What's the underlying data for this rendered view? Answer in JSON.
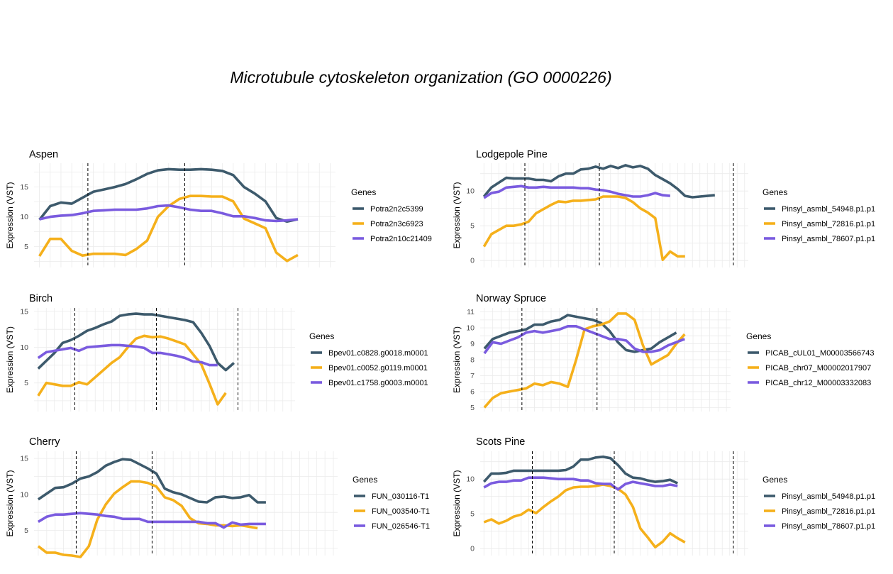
{
  "title": "Microtubule cytoskeleton organization (GO 0000226)",
  "colors": {
    "dark": "#3d5a6c",
    "orange": "#f5b01b",
    "purple": "#7a5bdf",
    "grid": "#ebebeb"
  },
  "chart_data": [
    {
      "type": "line",
      "title": "Aspen",
      "ylabel": "Expression (VST)",
      "legend_title": "Genes",
      "legend_position": "right",
      "ylim": [
        1.5,
        19
      ],
      "yticks": [
        5,
        10,
        15
      ],
      "x": [
        1,
        2,
        3,
        4,
        5,
        6,
        7,
        8,
        9,
        10,
        11,
        12,
        13,
        14,
        15,
        16,
        17,
        18,
        19,
        20,
        21,
        22,
        23,
        24,
        25,
        26,
        27,
        28
      ],
      "vlines": [
        5.5,
        14.5
      ],
      "series": [
        {
          "name": "Potra2n2c5399",
          "color": "#3d5a6c",
          "values": [
            9.5,
            11.8,
            12.4,
            12.2,
            13.2,
            14.2,
            14.6,
            15.0,
            15.5,
            16.3,
            17.2,
            17.8,
            18.0,
            17.9,
            17.9,
            18.0,
            17.9,
            17.7,
            17.0,
            15.0,
            13.9,
            12.6,
            9.8,
            9.2,
            9.6,
            null,
            null,
            null
          ]
        },
        {
          "name": "Potra2n3c6923",
          "color": "#f5b01b",
          "values": [
            3.4,
            6.3,
            6.3,
            4.3,
            3.5,
            3.8,
            3.8,
            3.8,
            3.6,
            4.6,
            6.0,
            10.0,
            11.8,
            13.0,
            13.5,
            13.5,
            13.4,
            13.4,
            12.6,
            9.7,
            8.9,
            8.1,
            4.0,
            2.6,
            3.6,
            null,
            null,
            null
          ]
        },
        {
          "name": "Potra2n10c21409",
          "color": "#7a5bdf",
          "values": [
            9.6,
            10.0,
            10.2,
            10.3,
            10.6,
            11.0,
            11.1,
            11.2,
            11.2,
            11.2,
            11.4,
            11.8,
            11.9,
            11.6,
            11.2,
            11.0,
            11.0,
            10.6,
            10.1,
            10.1,
            9.8,
            9.4,
            9.3,
            9.4,
            9.6,
            null,
            null,
            null
          ]
        }
      ]
    },
    {
      "type": "line",
      "title": "Lodgepole Pine",
      "ylabel": "Expression (VST)",
      "legend_title": "Genes",
      "legend_position": "right",
      "ylim": [
        -1,
        14
      ],
      "yticks": [
        0,
        5,
        10
      ],
      "x": [
        1,
        2,
        3,
        4,
        5,
        6,
        7,
        8,
        9,
        10,
        11,
        12,
        13,
        14,
        15,
        16,
        17,
        18,
        19,
        20,
        21,
        22,
        23,
        24,
        25,
        26,
        27,
        28,
        29,
        30,
        31,
        32,
        33,
        34,
        35,
        36
      ],
      "vlines": [
        6.5,
        16.5,
        34.5
      ],
      "series": [
        {
          "name": "Pinsyl_asmbl_54948.p1.p1",
          "color": "#3d5a6c",
          "values": [
            9.2,
            10.5,
            11.2,
            11.9,
            11.8,
            11.8,
            11.8,
            11.6,
            11.6,
            11.4,
            12.1,
            12.5,
            12.5,
            13.1,
            13.2,
            13.5,
            13.2,
            13.6,
            13.3,
            13.7,
            13.4,
            13.6,
            13.2,
            12.3,
            11.7,
            11.1,
            10.3,
            9.3,
            9.1,
            9.2,
            9.3,
            9.4,
            null,
            null,
            null,
            null
          ]
        },
        {
          "name": "Pinsyl_asmbl_72816.p1.p1",
          "color": "#f5b01b",
          "values": [
            2.0,
            3.8,
            4.4,
            5.0,
            5.0,
            5.2,
            5.6,
            6.8,
            7.4,
            8.0,
            8.5,
            8.4,
            8.6,
            8.6,
            8.7,
            8.8,
            9.2,
            9.2,
            9.2,
            9.0,
            8.4,
            7.5,
            6.9,
            6.1,
            0.1,
            1.3,
            0.6,
            0.6,
            null,
            null,
            null,
            null,
            null,
            null,
            null,
            null
          ]
        },
        {
          "name": "Pinsyl_asmbl_78607.p1.p1",
          "color": "#7a5bdf",
          "values": [
            9.0,
            9.7,
            9.9,
            10.5,
            10.6,
            10.7,
            10.5,
            10.5,
            10.6,
            10.5,
            10.5,
            10.5,
            10.5,
            10.4,
            10.4,
            10.2,
            10.1,
            9.9,
            9.6,
            9.4,
            9.2,
            9.2,
            9.4,
            9.7,
            9.4,
            9.3,
            null,
            null,
            null,
            null,
            null,
            null,
            null,
            null,
            null,
            null
          ]
        }
      ]
    },
    {
      "type": "line",
      "title": "Birch",
      "ylabel": "Expression (VST)",
      "legend_title": "Genes",
      "legend_position": "right",
      "ylim": [
        1,
        15.5
      ],
      "yticks": [
        5,
        10,
        15
      ],
      "x": [
        1,
        2,
        3,
        4,
        5,
        6,
        7,
        8,
        9,
        10,
        11,
        12,
        13,
        14,
        15,
        16,
        17,
        18,
        19,
        20,
        21,
        22,
        23,
        24,
        25,
        26,
        27,
        28,
        29,
        30,
        31,
        32
      ],
      "vlines": [
        5.5,
        15.5,
        25.5
      ],
      "series": [
        {
          "name": "Bpev01.c0828.g0018.m0001",
          "color": "#3d5a6c",
          "values": [
            7.0,
            8.1,
            9.2,
            10.6,
            11.0,
            11.6,
            12.3,
            12.7,
            13.2,
            13.6,
            14.4,
            14.6,
            14.7,
            14.6,
            14.6,
            14.4,
            14.2,
            14.0,
            13.8,
            13.5,
            12.0,
            10.2,
            7.8,
            6.8,
            7.8,
            null,
            null,
            null,
            null,
            null,
            null,
            null
          ]
        },
        {
          "name": "Bpev01.c0052.g0119.m0001",
          "color": "#f5b01b",
          "values": [
            3.2,
            5.0,
            4.8,
            4.6,
            4.6,
            5.1,
            4.8,
            5.8,
            6.8,
            7.8,
            8.6,
            10.0,
            11.2,
            11.6,
            11.4,
            11.5,
            11.2,
            10.8,
            10.4,
            9.0,
            7.6,
            4.9,
            2.0,
            3.6,
            null,
            null,
            null,
            null,
            null,
            null,
            null,
            null
          ]
        },
        {
          "name": "Bpev01.c1758.g0003.m0001",
          "color": "#7a5bdf",
          "values": [
            8.5,
            9.3,
            9.5,
            9.7,
            9.9,
            9.5,
            10.0,
            10.1,
            10.2,
            10.3,
            10.3,
            10.2,
            10.1,
            9.9,
            9.2,
            9.2,
            9.0,
            8.8,
            8.5,
            8.0,
            7.9,
            7.5,
            7.5,
            null,
            null,
            null,
            null,
            null,
            null,
            null,
            null,
            null
          ]
        }
      ]
    },
    {
      "type": "line",
      "title": "Norway Spruce",
      "ylabel": "Expression (VST)",
      "legend_title": "Genes",
      "legend_position": "right",
      "ylim": [
        4.75,
        11.25
      ],
      "yticks": [
        5,
        6,
        7,
        8,
        9,
        10,
        11
      ],
      "x": [
        1,
        2,
        3,
        4,
        5,
        6,
        7,
        8,
        9,
        10,
        11,
        12,
        13,
        14,
        15,
        16,
        17,
        18,
        19,
        20,
        21,
        22,
        23,
        24,
        25,
        26,
        27,
        28,
        29,
        30
      ],
      "vlines": [
        5.5,
        14.5
      ],
      "series": [
        {
          "name": "PICAB_cUL01_M00003566743",
          "color": "#3d5a6c",
          "values": [
            8.7,
            9.3,
            9.5,
            9.7,
            9.8,
            9.9,
            10.2,
            10.2,
            10.4,
            10.5,
            10.8,
            10.7,
            10.6,
            10.5,
            10.3,
            9.8,
            9.1,
            8.6,
            8.5,
            8.6,
            8.7,
            9.1,
            9.4,
            9.7,
            null,
            null,
            null,
            null,
            null,
            null
          ]
        },
        {
          "name": "PICAB_chr07_M00002017907",
          "color": "#f5b01b",
          "values": [
            5.0,
            5.6,
            5.9,
            6.0,
            6.1,
            6.2,
            6.5,
            6.4,
            6.6,
            6.5,
            6.3,
            8.0,
            9.9,
            10.1,
            10.2,
            10.4,
            10.9,
            10.9,
            10.5,
            8.9,
            7.7,
            8.0,
            8.3,
            9.0,
            9.6,
            null,
            null,
            null,
            null,
            null
          ]
        },
        {
          "name": "PICAB_chr12_M00003332083",
          "color": "#7a5bdf",
          "values": [
            8.4,
            9.1,
            9.0,
            9.2,
            9.4,
            9.7,
            9.8,
            9.7,
            9.8,
            9.9,
            10.1,
            10.1,
            9.9,
            9.7,
            9.5,
            9.3,
            9.3,
            9.2,
            8.7,
            8.5,
            8.5,
            8.6,
            8.9,
            9.1,
            9.3,
            null,
            null,
            null,
            null,
            null
          ]
        }
      ]
    },
    {
      "type": "line",
      "title": "Cherry",
      "ylabel": "Expression (VST)",
      "legend_title": "Genes",
      "legend_position": "right",
      "ylim": [
        1.5,
        16
      ],
      "yticks": [
        5,
        10,
        15
      ],
      "x": [
        1,
        2,
        3,
        4,
        5,
        6,
        7,
        8,
        9,
        10,
        11,
        12,
        13,
        14,
        15,
        16,
        17,
        18,
        19,
        20,
        21,
        22,
        23,
        24,
        25,
        26,
        27,
        28,
        29,
        30,
        31,
        32,
        33,
        34,
        35,
        36
      ],
      "vlines": [
        5.5,
        14.5
      ],
      "series": [
        {
          "name": "FUN_030116-T1",
          "color": "#3d5a6c",
          "values": [
            9.3,
            10.1,
            10.9,
            11.0,
            11.5,
            12.2,
            12.5,
            13.1,
            14.0,
            14.5,
            14.9,
            14.8,
            14.2,
            13.6,
            12.9,
            10.8,
            10.3,
            10.0,
            9.5,
            9.0,
            8.9,
            9.6,
            9.7,
            9.5,
            9.6,
            9.9,
            8.9,
            8.9,
            null,
            null,
            null,
            null,
            null,
            null,
            null,
            null
          ]
        },
        {
          "name": "FUN_003540-T1",
          "color": "#f5b01b",
          "values": [
            2.8,
            1.9,
            1.9,
            1.6,
            1.5,
            1.3,
            2.8,
            6.5,
            8.6,
            10.1,
            11.0,
            11.8,
            11.8,
            11.6,
            11.1,
            9.6,
            9.2,
            8.4,
            6.7,
            6.0,
            5.9,
            5.7,
            5.7,
            5.6,
            5.7,
            5.5,
            5.3,
            null,
            null,
            null,
            null,
            null,
            null,
            null,
            null,
            null
          ]
        },
        {
          "name": "FUN_026546-T1",
          "color": "#7a5bdf",
          "values": [
            6.2,
            6.9,
            7.2,
            7.2,
            7.3,
            7.4,
            7.3,
            7.2,
            7.0,
            6.9,
            6.6,
            6.6,
            6.6,
            6.2,
            6.2,
            6.2,
            6.2,
            6.2,
            6.2,
            6.2,
            6.0,
            6.0,
            5.4,
            6.1,
            5.8,
            5.9,
            5.9,
            5.9,
            null,
            null,
            null,
            null,
            null,
            null,
            null,
            null
          ]
        }
      ]
    },
    {
      "type": "line",
      "title": "Scots Pine",
      "ylabel": "Expression (VST)",
      "legend_title": "Genes",
      "legend_position": "right",
      "ylim": [
        -1,
        14
      ],
      "yticks": [
        0,
        5,
        10
      ],
      "x": [
        1,
        2,
        3,
        4,
        5,
        6,
        7,
        8,
        9,
        10,
        11,
        12,
        13,
        14,
        15,
        16,
        17,
        18,
        19,
        20,
        21,
        22,
        23,
        24,
        25,
        26,
        27,
        28,
        29,
        30,
        31,
        32,
        33,
        34,
        35,
        36
      ],
      "vlines": [
        7.5,
        18.5,
        34.5
      ],
      "series": [
        {
          "name": "Pinsyl_asmbl_54948.p1.p1",
          "color": "#3d5a6c",
          "values": [
            9.6,
            10.8,
            10.8,
            10.9,
            11.2,
            11.2,
            11.2,
            11.2,
            11.2,
            11.2,
            11.2,
            11.3,
            11.8,
            12.8,
            12.8,
            13.1,
            13.2,
            13.0,
            12.0,
            10.8,
            10.2,
            10.1,
            9.8,
            9.6,
            9.7,
            9.9,
            9.4,
            null,
            null,
            null,
            null,
            null,
            null,
            null,
            null,
            null
          ]
        },
        {
          "name": "Pinsyl_asmbl_72816.p1.p1",
          "color": "#f5b01b",
          "values": [
            3.8,
            4.2,
            3.6,
            4.0,
            4.6,
            4.9,
            5.6,
            5.1,
            6.0,
            6.8,
            7.5,
            8.4,
            8.8,
            8.9,
            8.9,
            9.0,
            9.2,
            9.0,
            8.6,
            7.8,
            6.0,
            2.9,
            1.6,
            0.2,
            1.0,
            2.2,
            1.5,
            0.9,
            null,
            null,
            null,
            null,
            null,
            null,
            null,
            null
          ]
        },
        {
          "name": "Pinsyl_asmbl_78607.p1.p1",
          "color": "#7a5bdf",
          "values": [
            8.8,
            9.4,
            9.6,
            9.6,
            9.8,
            9.8,
            10.2,
            10.2,
            10.2,
            10.1,
            10.0,
            10.0,
            10.0,
            9.8,
            9.8,
            9.4,
            9.3,
            9.3,
            8.5,
            9.3,
            9.6,
            9.4,
            9.2,
            9.0,
            9.0,
            9.2,
            9.0,
            null,
            null,
            null,
            null,
            null,
            null,
            null,
            null,
            null
          ]
        }
      ]
    }
  ]
}
